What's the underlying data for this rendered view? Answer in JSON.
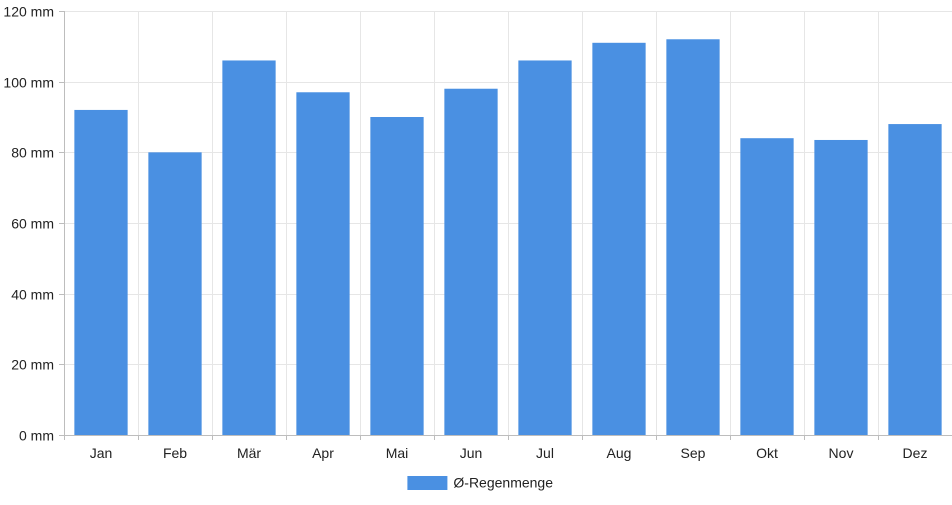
{
  "chart_data": {
    "type": "bar",
    "categories": [
      "Jan",
      "Feb",
      "Mär",
      "Apr",
      "Mai",
      "Jun",
      "Jul",
      "Aug",
      "Sep",
      "Okt",
      "Nov",
      "Dez"
    ],
    "series": [
      {
        "name": "Ø-Regenmenge",
        "values": [
          92,
          80,
          106,
          97,
          90,
          98,
          106,
          111,
          112,
          84,
          83.5,
          88
        ],
        "color": "#4a90e2"
      }
    ],
    "y_unit_suffix": " mm",
    "ylim": [
      0,
      120
    ],
    "y_ticks": [
      0,
      20,
      40,
      60,
      80,
      100,
      120
    ],
    "grid": true,
    "legend_position": "bottom"
  }
}
